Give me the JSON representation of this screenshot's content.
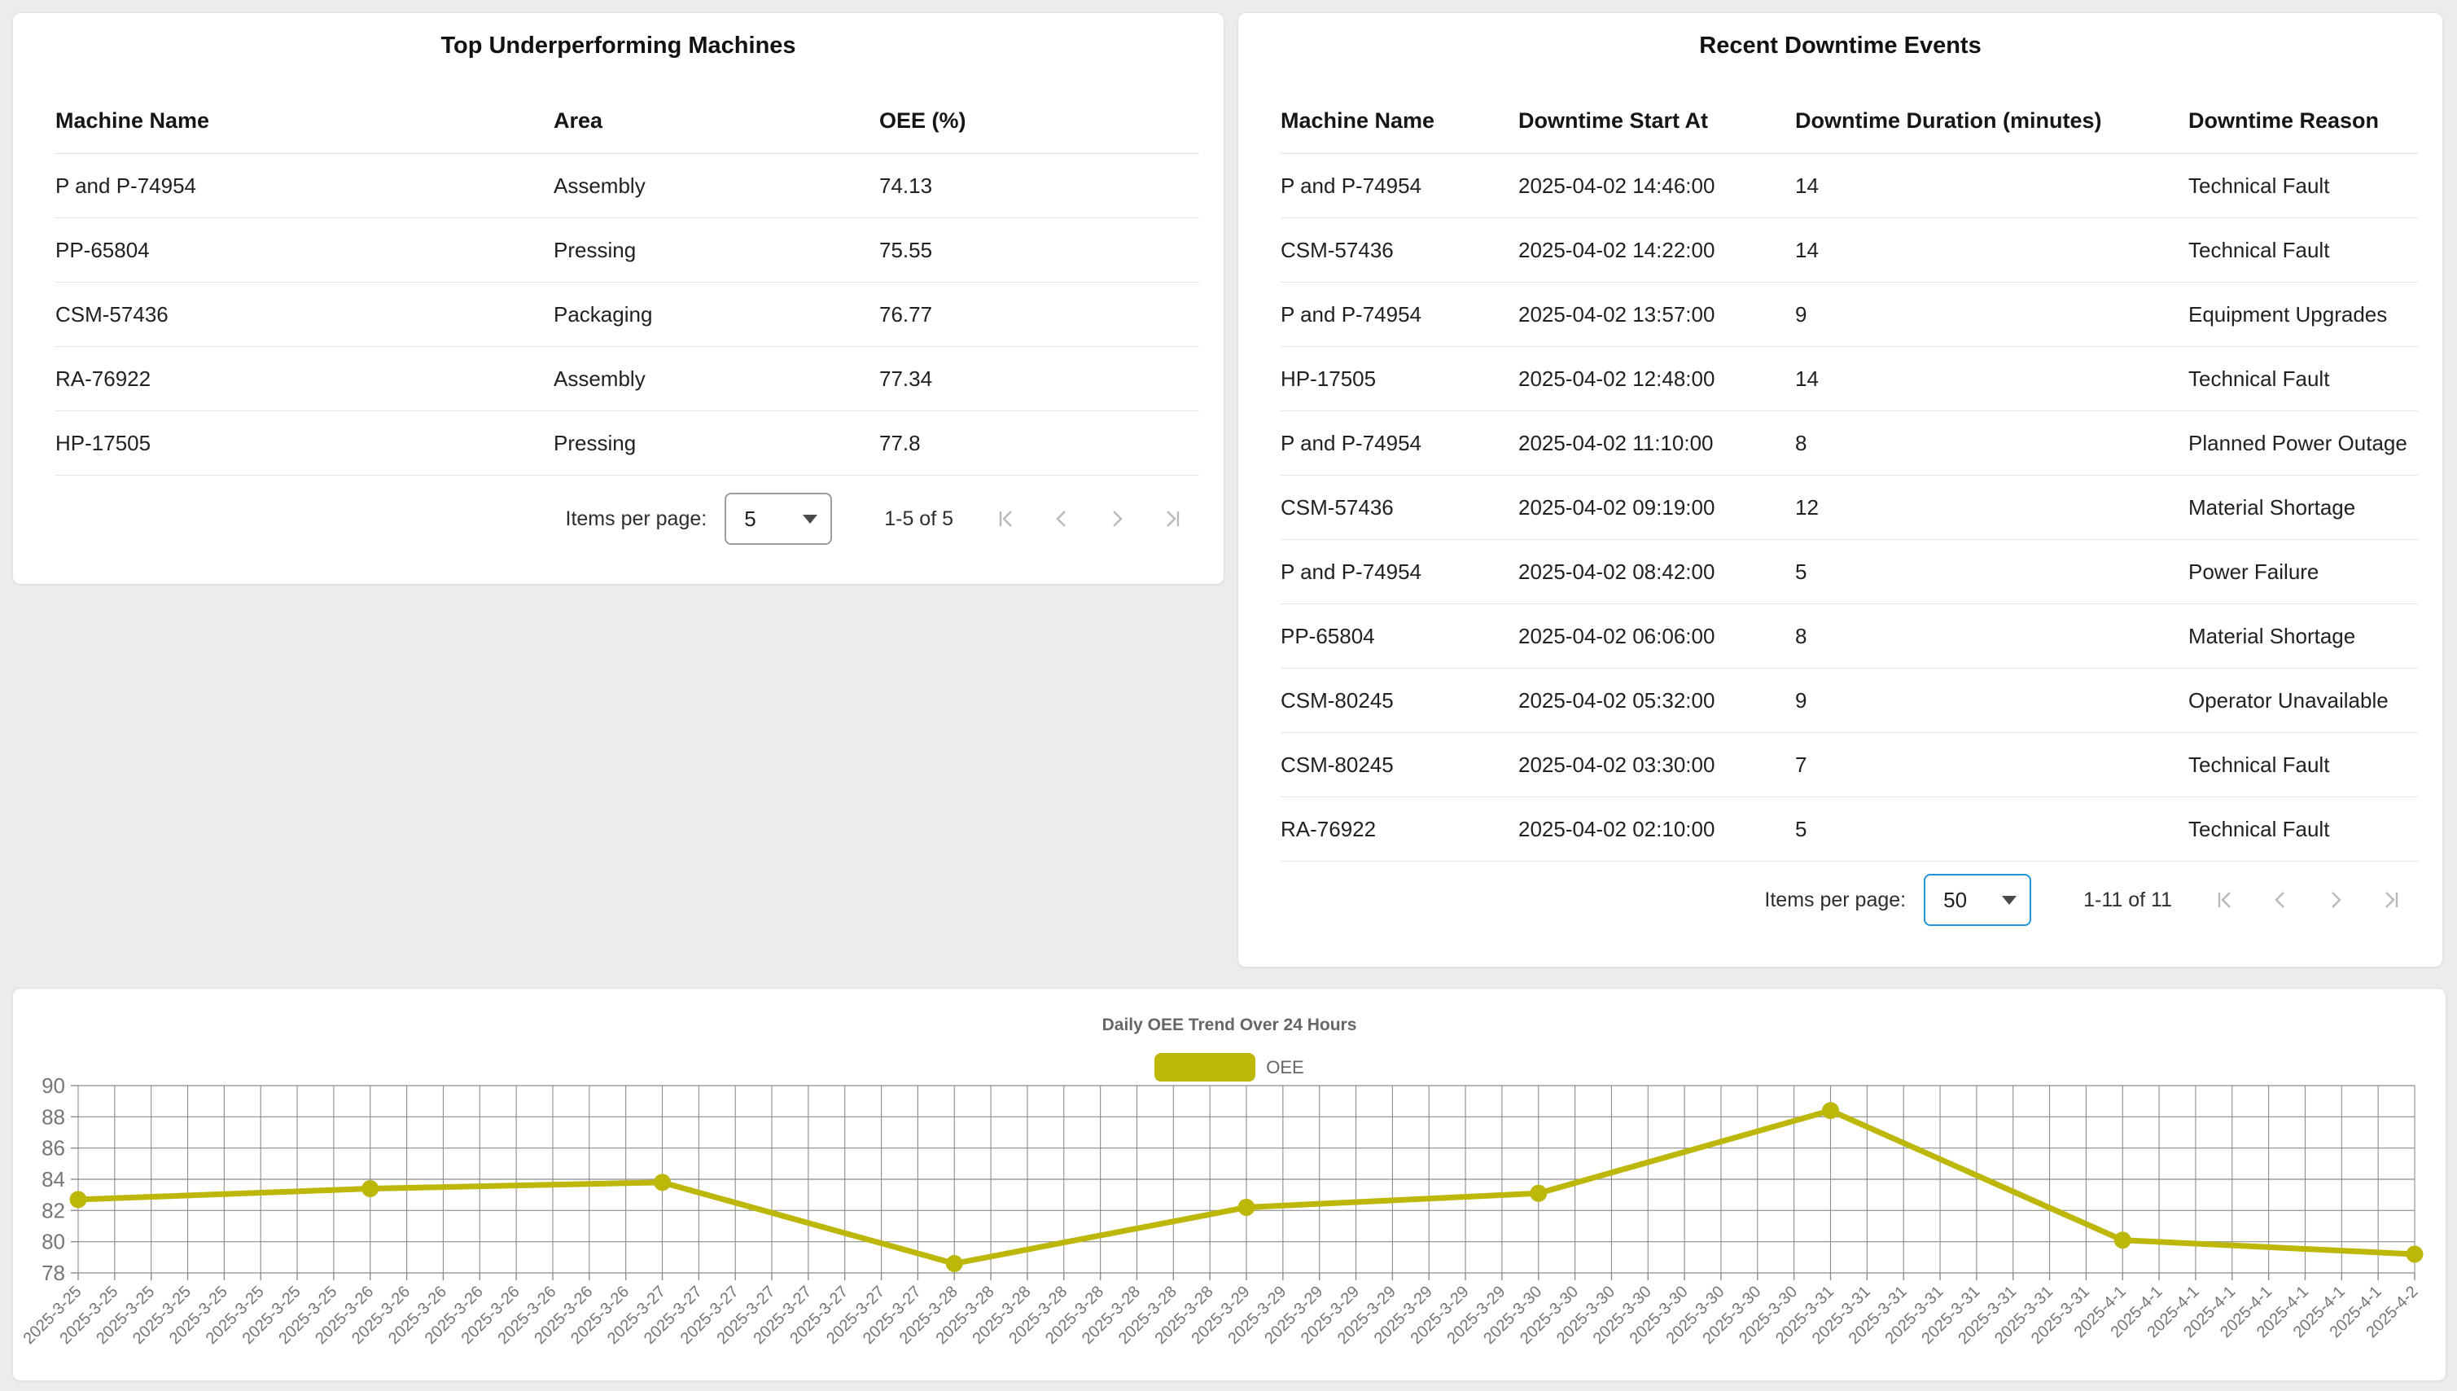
{
  "colors": {
    "page_bg": "#ececec",
    "accent_blue": "#2196d6",
    "series": "#bdb70a",
    "grid": "#8c8c8c",
    "axis_text": "#767676",
    "pager_icon": "#b9b9b9"
  },
  "left_table": {
    "title": "Top Underperforming Machines",
    "columns": [
      "Machine Name",
      "Area",
      "OEE (%)"
    ],
    "rows": [
      [
        "P and P-74954",
        "Assembly",
        "74.13"
      ],
      [
        "PP-65804",
        "Pressing",
        "75.55"
      ],
      [
        "CSM-57436",
        "Packaging",
        "76.77"
      ],
      [
        "RA-76922",
        "Assembly",
        "77.34"
      ],
      [
        "HP-17505",
        "Pressing",
        "77.8"
      ]
    ],
    "pagination": {
      "label": "Items per page:",
      "page_size": "5",
      "range": "1-5 of 5"
    }
  },
  "right_table": {
    "title": "Recent Downtime Events",
    "columns": [
      "Machine Name",
      "Downtime Start At",
      "Downtime Duration (minutes)",
      "Downtime Reason"
    ],
    "rows": [
      [
        "P and P-74954",
        "2025-04-02 14:46:00",
        "14",
        "Technical Fault"
      ],
      [
        "CSM-57436",
        "2025-04-02 14:22:00",
        "14",
        "Technical Fault"
      ],
      [
        "P and P-74954",
        "2025-04-02 13:57:00",
        "9",
        "Equipment Upgrades"
      ],
      [
        "HP-17505",
        "2025-04-02 12:48:00",
        "14",
        "Technical Fault"
      ],
      [
        "P and P-74954",
        "2025-04-02 11:10:00",
        "8",
        "Planned Power Outage"
      ],
      [
        "CSM-57436",
        "2025-04-02 09:19:00",
        "12",
        "Material Shortage"
      ],
      [
        "P and P-74954",
        "2025-04-02 08:42:00",
        "5",
        "Power Failure"
      ],
      [
        "PP-65804",
        "2025-04-02 06:06:00",
        "8",
        "Material Shortage"
      ],
      [
        "CSM-80245",
        "2025-04-02 05:32:00",
        "9",
        "Operator Unavailable"
      ],
      [
        "CSM-80245",
        "2025-04-02 03:30:00",
        "7",
        "Technical Fault"
      ],
      [
        "RA-76922",
        "2025-04-02 02:10:00",
        "5",
        "Technical Fault"
      ]
    ],
    "pagination": {
      "label": "Items per page:",
      "page_size": "50",
      "range": "1-11 of 11"
    }
  },
  "chart_data": {
    "type": "line",
    "title": "Daily OEE Trend Over 24 Hours",
    "legend": [
      "OEE"
    ],
    "legend_position": "top-center",
    "grid": true,
    "x_axis": {
      "dates": [
        "2025-3-25",
        "2025-3-26",
        "2025-3-27",
        "2025-3-28",
        "2025-3-29",
        "2025-3-30",
        "2025-3-31",
        "2025-4-1",
        "2025-4-2"
      ],
      "ticks_per_date": [
        8,
        8,
        8,
        8,
        8,
        8,
        8,
        8,
        1
      ],
      "label_rotation_deg": 45
    },
    "y_axis": {
      "min": 78,
      "max": 90,
      "ticks": [
        78,
        80,
        82,
        84,
        86,
        88,
        90
      ]
    },
    "series": [
      {
        "name": "OEE",
        "color": "#bdb70a",
        "x_dates": [
          "2025-3-25",
          "2025-3-26",
          "2025-3-27",
          "2025-3-28",
          "2025-3-29",
          "2025-3-30",
          "2025-3-31",
          "2025-4-1",
          "2025-4-2"
        ],
        "values": [
          82.7,
          83.4,
          83.8,
          78.6,
          82.2,
          83.1,
          88.4,
          80.1,
          79.2
        ]
      }
    ]
  }
}
